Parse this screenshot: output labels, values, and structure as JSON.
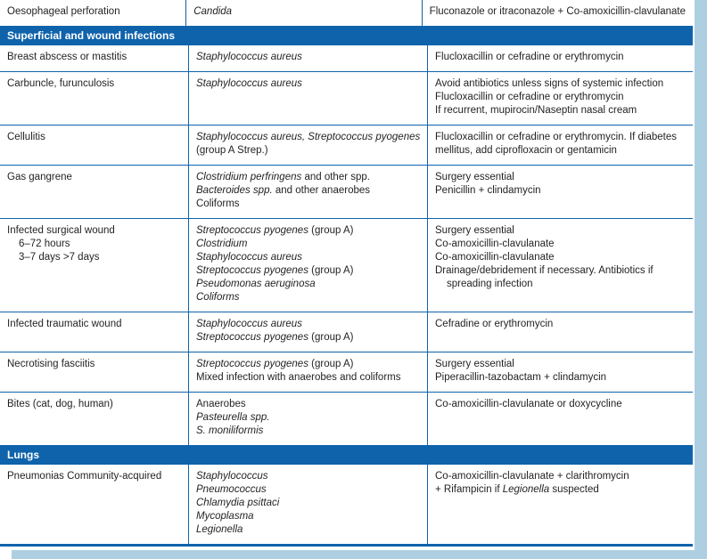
{
  "colors": {
    "accent_blue": "#0f63ab",
    "text": "#231f20",
    "section_text": "#ffffff",
    "page_edge": "#aecfe2"
  },
  "table": {
    "rows": [
      {
        "type": "data",
        "condition": [
          {
            "segments": [
              {
                "text": "Oesophageal perforation"
              }
            ]
          }
        ],
        "organisms": [
          {
            "segments": [
              {
                "text": "Candida",
                "italic": true
              }
            ]
          }
        ],
        "treatments": [
          {
            "segments": [
              {
                "text": "Fluconazole or itraconazole + Co-amoxicillin-clavulanate"
              }
            ]
          }
        ]
      },
      {
        "type": "section",
        "label": "Superficial and wound infections"
      },
      {
        "type": "data",
        "condition": [
          {
            "segments": [
              {
                "text": "Breast abscess or mastitis"
              }
            ]
          }
        ],
        "organisms": [
          {
            "segments": [
              {
                "text": "Staphylococcus aureus",
                "italic": true
              }
            ]
          }
        ],
        "treatments": [
          {
            "segments": [
              {
                "text": "Flucloxacillin or cefradine or erythromycin"
              }
            ]
          }
        ]
      },
      {
        "type": "data",
        "condition": [
          {
            "segments": [
              {
                "text": "Carbuncle, furunculosis"
              }
            ]
          }
        ],
        "organisms": [
          {
            "segments": [
              {
                "text": "Staphylococcus aureus",
                "italic": true
              }
            ]
          }
        ],
        "treatments": [
          {
            "segments": [
              {
                "text": "Avoid antibiotics unless signs of systemic infection"
              }
            ]
          },
          {
            "segments": [
              {
                "text": "Flucloxacillin or cefradine or erythromycin"
              }
            ]
          },
          {
            "segments": [
              {
                "text": "If recurrent, mupirocin/Naseptin nasal cream"
              }
            ]
          }
        ]
      },
      {
        "type": "data",
        "condition": [
          {
            "segments": [
              {
                "text": "Cellulitis"
              }
            ]
          }
        ],
        "organisms": [
          {
            "segments": [
              {
                "text": "Staphylococcus aureus, Streptococcus pyogenes",
                "italic": true
              }
            ]
          },
          {
            "segments": [
              {
                "text": "(group A Strep.)"
              }
            ]
          }
        ],
        "treatments": [
          {
            "segments": [
              {
                "text": "Flucloxacillin or cefradine or erythromycin. If diabetes"
              }
            ]
          },
          {
            "segments": [
              {
                "text": "mellitus, add ciprofloxacin or gentamicin"
              }
            ]
          }
        ]
      },
      {
        "type": "data",
        "condition": [
          {
            "segments": [
              {
                "text": "Gas gangrene"
              }
            ]
          }
        ],
        "organisms": [
          {
            "segments": [
              {
                "text": "Clostridium perfringens",
                "italic": true
              },
              {
                "text": " and other spp."
              }
            ]
          },
          {
            "segments": [
              {
                "text": "Bacteroides spp.",
                "italic": true
              },
              {
                "text": " and other anaerobes"
              }
            ]
          },
          {
            "segments": [
              {
                "text": "Coliforms"
              }
            ]
          }
        ],
        "treatments": [
          {
            "segments": [
              {
                "text": "Surgery essential"
              }
            ]
          },
          {
            "segments": [
              {
                "text": "Penicillin + clindamycin"
              }
            ]
          }
        ]
      },
      {
        "type": "data",
        "condition": [
          {
            "segments": [
              {
                "text": "Infected surgical wound"
              }
            ]
          },
          {
            "indent": true,
            "segments": [
              {
                "text": "6–72 hours"
              }
            ]
          },
          {
            "indent": true,
            "segments": [
              {
                "text": "3–7 days >7 days"
              }
            ]
          }
        ],
        "organisms": [
          {
            "segments": [
              {
                "text": "Streptococcus pyogenes",
                "italic": true
              },
              {
                "text": " (group A)"
              }
            ]
          },
          {
            "segments": [
              {
                "text": "Clostridium",
                "italic": true
              }
            ]
          },
          {
            "segments": [
              {
                "text": "Staphylococcus aureus",
                "italic": true
              }
            ]
          },
          {
            "segments": [
              {
                "text": "Streptococcus pyogenes",
                "italic": true
              },
              {
                "text": " (group A)"
              }
            ]
          },
          {
            "segments": [
              {
                "text": "Pseudomonas aeruginosa",
                "italic": true
              }
            ]
          },
          {
            "segments": [
              {
                "text": "Coliforms",
                "italic": true
              }
            ]
          }
        ],
        "treatments": [
          {
            "segments": [
              {
                "text": "Surgery essential"
              }
            ]
          },
          {
            "segments": [
              {
                "text": "Co-amoxicillin-clavulanate"
              }
            ]
          },
          {
            "segments": [
              {
                "text": "Co-amoxicillin-clavulanate"
              }
            ]
          },
          {
            "segments": [
              {
                "text": "Drainage/debridement if necessary. Antibiotics if"
              }
            ]
          },
          {
            "indent": true,
            "segments": [
              {
                "text": "spreading infection"
              }
            ]
          }
        ]
      },
      {
        "type": "data",
        "condition": [
          {
            "segments": [
              {
                "text": "Infected traumatic wound"
              }
            ]
          }
        ],
        "organisms": [
          {
            "segments": [
              {
                "text": "Staphylococcus aureus",
                "italic": true
              }
            ]
          },
          {
            "segments": [
              {
                "text": "Streptococcus pyogenes",
                "italic": true
              },
              {
                "text": " (group A)"
              }
            ]
          }
        ],
        "treatments": [
          {
            "segments": [
              {
                "text": "Cefradine or erythromycin"
              }
            ]
          }
        ]
      },
      {
        "type": "data",
        "condition": [
          {
            "segments": [
              {
                "text": "Necrotising fasciitis"
              }
            ]
          }
        ],
        "organisms": [
          {
            "segments": [
              {
                "text": "Streptococcus pyogenes",
                "italic": true
              },
              {
                "text": " (group A)"
              }
            ]
          },
          {
            "segments": [
              {
                "text": "Mixed infection with anaerobes and coliforms"
              }
            ]
          }
        ],
        "treatments": [
          {
            "segments": [
              {
                "text": "Surgery essential"
              }
            ]
          },
          {
            "segments": [
              {
                "text": "Piperacillin-tazobactam + clindamycin"
              }
            ]
          }
        ]
      },
      {
        "type": "data",
        "condition": [
          {
            "segments": [
              {
                "text": "Bites (cat, dog, human)"
              }
            ]
          }
        ],
        "organisms": [
          {
            "segments": [
              {
                "text": "Anaerobes"
              }
            ]
          },
          {
            "segments": [
              {
                "text": "Pasteurella spp.",
                "italic": true
              }
            ]
          },
          {
            "segments": [
              {
                "text": "S. moniliformis",
                "italic": true
              }
            ]
          }
        ],
        "treatments": [
          {
            "segments": [
              {
                "text": "Co-amoxicillin-clavulanate or doxycycline"
              }
            ]
          }
        ]
      },
      {
        "type": "section",
        "label": "Lungs"
      },
      {
        "type": "data",
        "condition": [
          {
            "segments": [
              {
                "text": "Pneumonias Community-acquired"
              }
            ]
          }
        ],
        "organisms": [
          {
            "segments": [
              {
                "text": "Staphylococcus",
                "italic": true
              }
            ]
          },
          {
            "segments": [
              {
                "text": "Pneumococcus",
                "italic": true
              }
            ]
          },
          {
            "segments": [
              {
                "text": "Chlamydia psittaci",
                "italic": true
              }
            ]
          },
          {
            "segments": [
              {
                "text": "Mycoplasma",
                "italic": true
              }
            ]
          },
          {
            "segments": [
              {
                "text": "Legionella",
                "italic": true
              }
            ]
          }
        ],
        "treatments": [
          {
            "segments": [
              {
                "text": "Co-amoxicillin-clavulanate + clarithromycin"
              }
            ]
          },
          {
            "segments": [
              {
                "text": "+ Rifampicin if "
              },
              {
                "text": "Legionella",
                "italic": true
              },
              {
                "text": " suspected"
              }
            ]
          }
        ]
      }
    ]
  }
}
